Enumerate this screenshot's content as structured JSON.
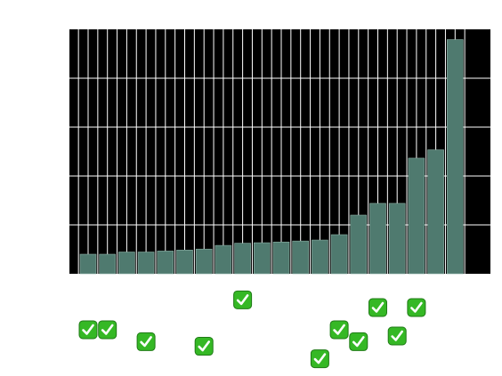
{
  "chart_data": {
    "type": "bar",
    "title": "",
    "xlabel": "",
    "ylabel": "",
    "background": "#000000",
    "bar_color": "#4f7a6f",
    "grid_color": "#ffffff",
    "grid": true,
    "tick_labels_visible": false,
    "ylim": [
      0,
      1.0
    ],
    "series": [
      {
        "values": [
          0.08,
          0.08,
          0.089,
          0.089,
          0.093,
          0.097,
          0.101,
          0.116,
          0.125,
          0.127,
          0.13,
          0.134,
          0.138,
          0.16,
          0.24,
          0.288,
          0.288,
          0.473,
          0.507,
          0.958
        ]
      }
    ],
    "marker_icon": "check-mark-button-icon",
    "marker_color": "#35b825",
    "marker_levels": [
      0.122,
      0.122,
      null,
      0.08,
      null,
      null,
      0.064,
      null,
      0.227,
      null,
      null,
      null,
      0.02,
      0.122,
      0.08,
      0.2,
      0.1,
      0.2,
      null,
      null
    ]
  }
}
